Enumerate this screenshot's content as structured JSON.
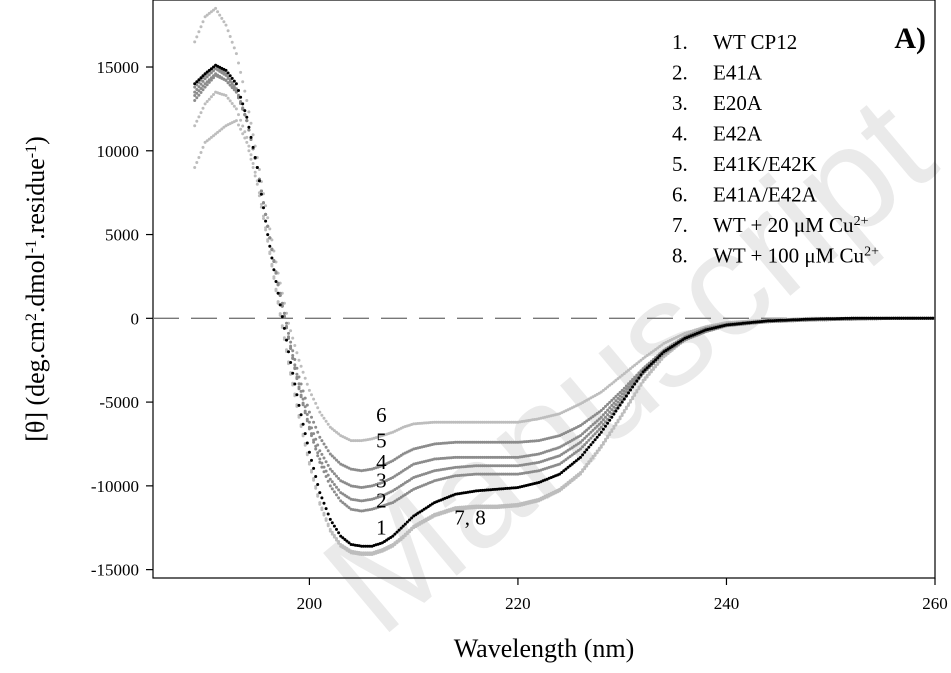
{
  "chart_data": {
    "type": "scatter",
    "panel_label": "A)",
    "xlabel": "Wavelength (nm)",
    "ylabel": "[θ] (deg.cm2.dmol-1.residue-1)",
    "ylabel_parts": {
      "a": "[θ] (deg.cm",
      "b": "2",
      "c": ".dmol",
      "d": "-1",
      "e": ".residue",
      "f": "-1",
      "g": ")"
    },
    "xlim": [
      185,
      260
    ],
    "ylim": [
      -15500,
      19000
    ],
    "x_ticks": [
      200,
      220,
      240,
      260
    ],
    "y_ticks": [
      -15000,
      -10000,
      -5000,
      0,
      5000,
      10000,
      15000
    ],
    "reference_line_y": 0,
    "grid": false,
    "legend": [
      {
        "num": "1.",
        "label": "WT CP12",
        "sup": ""
      },
      {
        "num": "2.",
        "label": "E41A",
        "sup": ""
      },
      {
        "num": "3.",
        "label": "E20A",
        "sup": ""
      },
      {
        "num": "4.",
        "label": "E42A",
        "sup": ""
      },
      {
        "num": "5.",
        "label": "E41K/E42K",
        "sup": ""
      },
      {
        "num": "6.",
        "label": "E41A/E42A",
        "sup": ""
      },
      {
        "num": "7.",
        "label": "WT + 20 μM Cu",
        "sup": "2+"
      },
      {
        "num": "8.",
        "label": "WT + 100 μM Cu",
        "sup": "2+"
      }
    ],
    "curve_labels": [
      {
        "text": "6",
        "x": 206.9,
        "y": -6200
      },
      {
        "text": "5",
        "x": 206.9,
        "y": -7700
      },
      {
        "text": "4",
        "x": 206.9,
        "y": -9000
      },
      {
        "text": "3",
        "x": 206.9,
        "y": -10100
      },
      {
        "text": "2",
        "x": 206.9,
        "y": -11300
      },
      {
        "text": "1",
        "x": 206.9,
        "y": -12900
      },
      {
        "text": "7, 8",
        "x": 215.4,
        "y": -12300
      }
    ],
    "series": [
      {
        "id": "1",
        "color": "#000000",
        "x": [
          189,
          190,
          191,
          192,
          193,
          194,
          195,
          196,
          197,
          198,
          199,
          200,
          201,
          202,
          203,
          204,
          205,
          206,
          207,
          208,
          209,
          210,
          212,
          214,
          216,
          218,
          220,
          222,
          224,
          226,
          228,
          230,
          232,
          234,
          236,
          238,
          240,
          244,
          248,
          252,
          256,
          260
        ],
        "y": [
          14000,
          14600,
          15100,
          14800,
          14000,
          12000,
          9000,
          5000,
          1500,
          -2000,
          -5200,
          -8000,
          -10400,
          -12000,
          -13000,
          -13500,
          -13600,
          -13600,
          -13400,
          -13000,
          -12400,
          -11800,
          -11000,
          -10500,
          -10300,
          -10200,
          -10100,
          -9800,
          -9300,
          -8300,
          -6800,
          -5000,
          -3200,
          -2000,
          -1200,
          -700,
          -400,
          -150,
          -50,
          0,
          0,
          0
        ]
      },
      {
        "id": "2",
        "color": "#8c8c8c",
        "x": [
          189,
          190,
          191,
          192,
          193,
          194,
          195,
          196,
          197,
          198,
          199,
          200,
          201,
          202,
          203,
          204,
          205,
          206,
          207,
          208,
          209,
          210,
          212,
          214,
          216,
          218,
          220,
          222,
          224,
          226,
          228,
          230,
          232,
          234,
          236,
          238,
          240,
          244,
          248,
          252,
          256,
          260
        ],
        "y": [
          13000,
          13800,
          14500,
          14200,
          13500,
          11800,
          9000,
          5500,
          2000,
          -1200,
          -4200,
          -6600,
          -8600,
          -10000,
          -10900,
          -11400,
          -11500,
          -11400,
          -11200,
          -11000,
          -10600,
          -10200,
          -9700,
          -9400,
          -9300,
          -9300,
          -9300,
          -9100,
          -8700,
          -7800,
          -6500,
          -4900,
          -3300,
          -2100,
          -1300,
          -800,
          -450,
          -200,
          -100,
          -50,
          0,
          0
        ]
      },
      {
        "id": "3",
        "color": "#8c8c8c",
        "x": [
          189,
          190,
          191,
          192,
          193,
          194,
          195,
          196,
          197,
          198,
          199,
          200,
          201,
          202,
          203,
          204,
          205,
          206,
          207,
          208,
          209,
          210,
          212,
          214,
          216,
          218,
          220,
          222,
          224,
          226,
          228,
          230,
          232,
          234,
          236,
          238,
          240,
          244,
          248,
          252,
          256,
          260
        ],
        "y": [
          13300,
          14000,
          14600,
          14200,
          13500,
          11800,
          9000,
          5500,
          2000,
          -1200,
          -4100,
          -6500,
          -8400,
          -9600,
          -10400,
          -10800,
          -10900,
          -10800,
          -10600,
          -10300,
          -9900,
          -9500,
          -9100,
          -8900,
          -8800,
          -8800,
          -8800,
          -8600,
          -8200,
          -7400,
          -6200,
          -4700,
          -3200,
          -2000,
          -1200,
          -700,
          -400,
          -200,
          -100,
          -50,
          0,
          0
        ]
      },
      {
        "id": "4",
        "color": "#8c8c8c",
        "x": [
          189,
          190,
          191,
          192,
          193,
          194,
          195,
          196,
          197,
          198,
          199,
          200,
          201,
          202,
          203,
          204,
          205,
          206,
          207,
          208,
          209,
          210,
          212,
          214,
          216,
          218,
          220,
          222,
          224,
          226,
          228,
          230,
          232,
          234,
          236,
          238,
          240,
          244,
          248,
          252,
          256,
          260
        ],
        "y": [
          13800,
          14500,
          15100,
          14600,
          13700,
          11800,
          9000,
          5500,
          2000,
          -1100,
          -3900,
          -6200,
          -7900,
          -9000,
          -9700,
          -10000,
          -10100,
          -10000,
          -9800,
          -9500,
          -9100,
          -8700,
          -8400,
          -8300,
          -8300,
          -8300,
          -8300,
          -8100,
          -7700,
          -7000,
          -5900,
          -4500,
          -3100,
          -2000,
          -1200,
          -700,
          -400,
          -200,
          -100,
          -50,
          0,
          0
        ]
      },
      {
        "id": "5",
        "color": "#8c8c8c",
        "x": [
          189,
          190,
          191,
          192,
          193,
          194,
          195,
          196,
          197,
          198,
          199,
          200,
          201,
          202,
          203,
          204,
          205,
          206,
          207,
          208,
          209,
          210,
          212,
          214,
          216,
          218,
          220,
          222,
          224,
          226,
          228,
          230,
          232,
          234,
          236,
          238,
          240,
          244,
          248,
          252,
          256,
          260
        ],
        "y": [
          13500,
          14300,
          14900,
          14500,
          13600,
          11800,
          9000,
          5500,
          2100,
          -900,
          -3500,
          -5600,
          -7100,
          -8100,
          -8700,
          -9000,
          -9100,
          -9000,
          -8800,
          -8500,
          -8100,
          -7800,
          -7500,
          -7400,
          -7400,
          -7400,
          -7400,
          -7300,
          -7000,
          -6400,
          -5500,
          -4300,
          -3000,
          -1900,
          -1100,
          -600,
          -350,
          -150,
          -50,
          0,
          0,
          0
        ]
      },
      {
        "id": "6",
        "color": "#bdbdbd",
        "x": [
          189,
          190,
          191,
          192,
          193,
          194,
          195,
          196,
          197,
          198,
          199,
          200,
          201,
          202,
          203,
          204,
          205,
          206,
          207,
          208,
          209,
          210,
          212,
          214,
          216,
          218,
          220,
          222,
          224,
          226,
          228,
          230,
          232,
          234,
          236,
          238,
          240,
          244,
          248,
          252,
          256,
          260
        ],
        "y": [
          16500,
          18000,
          18500,
          17500,
          15800,
          13000,
          9600,
          6000,
          2700,
          -300,
          -2500,
          -4300,
          -5600,
          -6500,
          -7000,
          -7300,
          -7300,
          -7200,
          -7000,
          -6800,
          -6500,
          -6300,
          -6200,
          -6200,
          -6200,
          -6200,
          -6200,
          -6000,
          -5700,
          -5100,
          -4400,
          -3400,
          -2400,
          -1500,
          -900,
          -500,
          -250,
          -100,
          0,
          0,
          0,
          0
        ]
      },
      {
        "id": "7",
        "color": "#bdbdbd",
        "x": [
          189,
          190,
          191,
          192,
          193,
          194,
          195,
          196,
          197,
          198,
          199,
          200,
          201,
          202,
          203,
          204,
          205,
          206,
          207,
          208,
          209,
          210,
          212,
          214,
          216,
          218,
          220,
          222,
          224,
          226,
          228,
          230,
          232,
          234,
          236,
          238,
          240,
          244,
          248,
          252,
          256,
          260
        ],
        "y": [
          11500,
          12800,
          13500,
          13300,
          12500,
          10800,
          8200,
          4700,
          1000,
          -2600,
          -5800,
          -8600,
          -11000,
          -12600,
          -13500,
          -13900,
          -14000,
          -14000,
          -13800,
          -13500,
          -13000,
          -12400,
          -11700,
          -11300,
          -11200,
          -11200,
          -11100,
          -10800,
          -10200,
          -9200,
          -7600,
          -5700,
          -3700,
          -2200,
          -1300,
          -700,
          -400,
          -150,
          -50,
          0,
          0,
          0
        ]
      },
      {
        "id": "8",
        "color": "#bdbdbd",
        "x": [
          189,
          190,
          191,
          192,
          193,
          194,
          195,
          196,
          197,
          198,
          199,
          200,
          201,
          202,
          203,
          204,
          205,
          206,
          207,
          208,
          209,
          210,
          212,
          214,
          216,
          218,
          220,
          222,
          224,
          226,
          228,
          230,
          232,
          234,
          236,
          238,
          240,
          244,
          248,
          252,
          256,
          260
        ],
        "y": [
          9000,
          10500,
          11000,
          11500,
          11800,
          10500,
          8000,
          4600,
          900,
          -2700,
          -5900,
          -8700,
          -11100,
          -12700,
          -13600,
          -14000,
          -14100,
          -14100,
          -13900,
          -13600,
          -13100,
          -12500,
          -11800,
          -11400,
          -11300,
          -11300,
          -11200,
          -10900,
          -10300,
          -9300,
          -7700,
          -5800,
          -3800,
          -2300,
          -1300,
          -700,
          -400,
          -150,
          -50,
          0,
          0,
          0
        ]
      }
    ]
  },
  "watermark": "Accepted Manuscript"
}
